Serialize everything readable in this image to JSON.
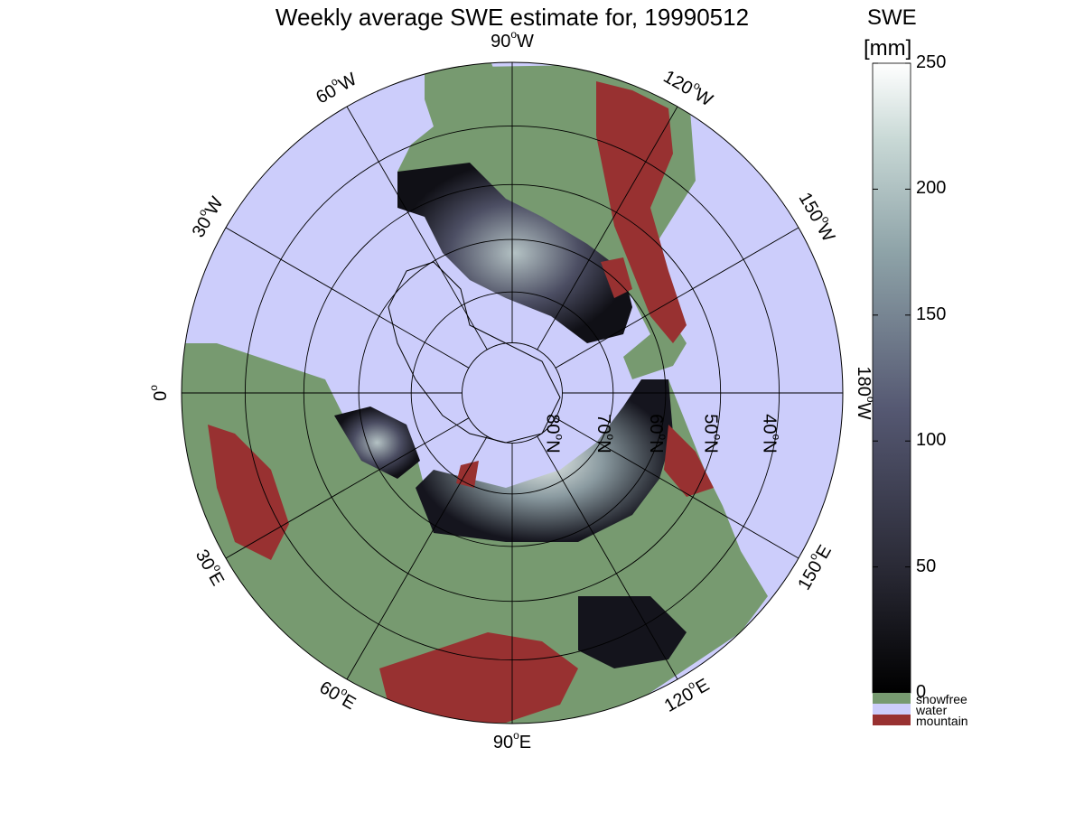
{
  "title": "Weekly average SWE estimate for, 19990512",
  "map": {
    "projection": "north-polar-stereographic",
    "longitude_labels": [
      {
        "text": "90",
        "dir": "W",
        "lon": -90
      },
      {
        "text": "60",
        "dir": "W",
        "lon": -60
      },
      {
        "text": "120",
        "dir": "W",
        "lon": -120
      },
      {
        "text": "30",
        "dir": "W",
        "lon": -30
      },
      {
        "text": "150",
        "dir": "W",
        "lon": -150
      },
      {
        "text": "0",
        "dir": "",
        "lon": 0
      },
      {
        "text": "180",
        "dir": "W",
        "lon": 180
      },
      {
        "text": "30",
        "dir": "E",
        "lon": 30
      },
      {
        "text": "150",
        "dir": "E",
        "lon": 150
      },
      {
        "text": "60",
        "dir": "E",
        "lon": 60
      },
      {
        "text": "120",
        "dir": "E",
        "lon": 120
      },
      {
        "text": "90",
        "dir": "E",
        "lon": 90
      }
    ],
    "latitude_labels": [
      {
        "text": "80",
        "dir": "N",
        "lat": 80
      },
      {
        "text": "70",
        "dir": "N",
        "lat": 70
      },
      {
        "text": "60",
        "dir": "N",
        "lat": 60
      },
      {
        "text": "50",
        "dir": "N",
        "lat": 50
      },
      {
        "text": "40",
        "dir": "N",
        "lat": 40
      }
    ]
  },
  "colorbar": {
    "label_line1": "SWE",
    "label_line2": "[mm]",
    "ticks": [
      "250",
      "200",
      "150",
      "100",
      "50",
      "0"
    ],
    "range": [
      0,
      250
    ],
    "categories": [
      {
        "label": "snowfree",
        "color": "#779a70"
      },
      {
        "label": "water",
        "color": "#cccdfb"
      },
      {
        "label": "mountain",
        "color": "#983131"
      }
    ]
  },
  "colors": {
    "land": "#779a70",
    "water": "#cccdfb",
    "mountain": "#983131",
    "swe_low": "#0a0a10",
    "swe_high": "#ffffff"
  }
}
